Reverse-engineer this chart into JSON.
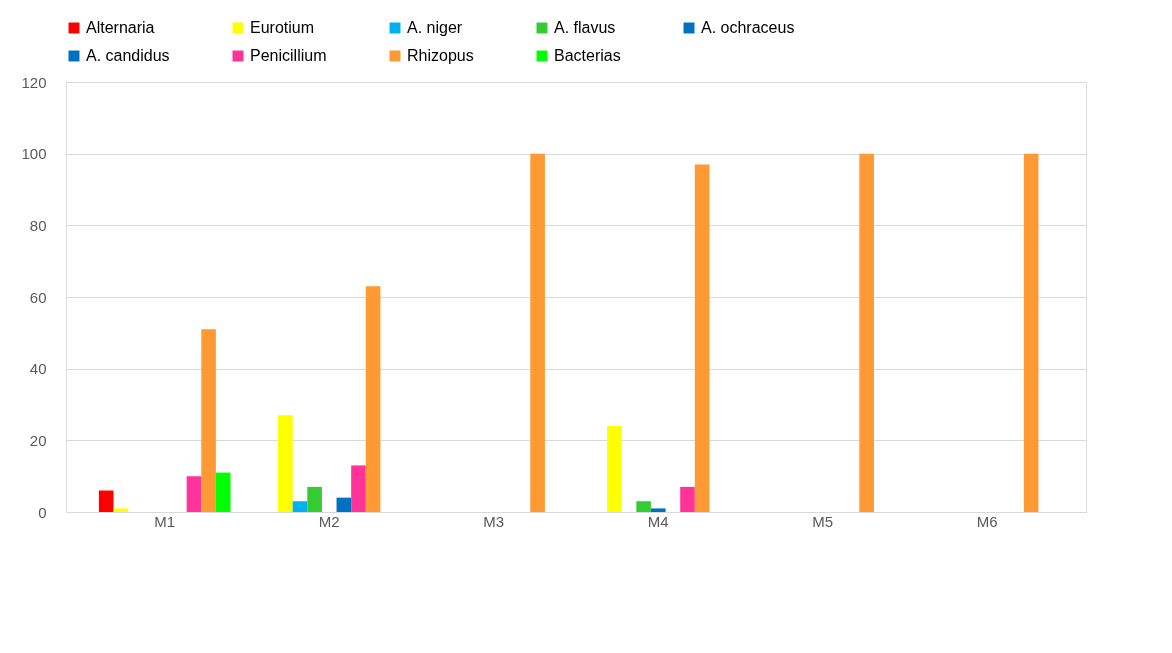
{
  "chart_data": {
    "type": "bar",
    "categories": [
      "M1",
      "M2",
      "M3",
      "M4",
      "M5",
      "M6"
    ],
    "series": [
      {
        "name": "Alternaria",
        "color": "#ff0000",
        "values": [
          6,
          0,
          0,
          0,
          0,
          0
        ]
      },
      {
        "name": "Eurotium",
        "color": "#ffff00",
        "values": [
          1,
          27,
          0,
          24,
          0,
          0
        ]
      },
      {
        "name": "A. niger",
        "color": "#00b0f0",
        "values": [
          0,
          3,
          0,
          0,
          0,
          0
        ]
      },
      {
        "name": "A. flavus",
        "color": "#33cc33",
        "values": [
          0,
          7,
          0,
          3,
          0,
          0
        ]
      },
      {
        "name": "A. ochraceus",
        "color": "#0070c0",
        "values": [
          0,
          0,
          0,
          1,
          0,
          0
        ]
      },
      {
        "name": "A. candidus",
        "color": "#0071c1",
        "values": [
          0,
          4,
          0,
          0,
          0,
          0
        ]
      },
      {
        "name": "Penicillium",
        "color": "#ff3399",
        "values": [
          10,
          13,
          0,
          7,
          0,
          0
        ]
      },
      {
        "name": "Rhizopus",
        "color": "#ff9933",
        "values": [
          51,
          63,
          100,
          97,
          100,
          100
        ]
      },
      {
        "name": "Bacterias",
        "color": "#00ff00",
        "values": [
          11,
          0,
          0,
          0,
          0,
          0
        ]
      }
    ],
    "ylim": [
      0,
      120
    ],
    "yticks": [
      0,
      20,
      40,
      60,
      80,
      100,
      120
    ],
    "grid": "y",
    "legend": "top"
  }
}
